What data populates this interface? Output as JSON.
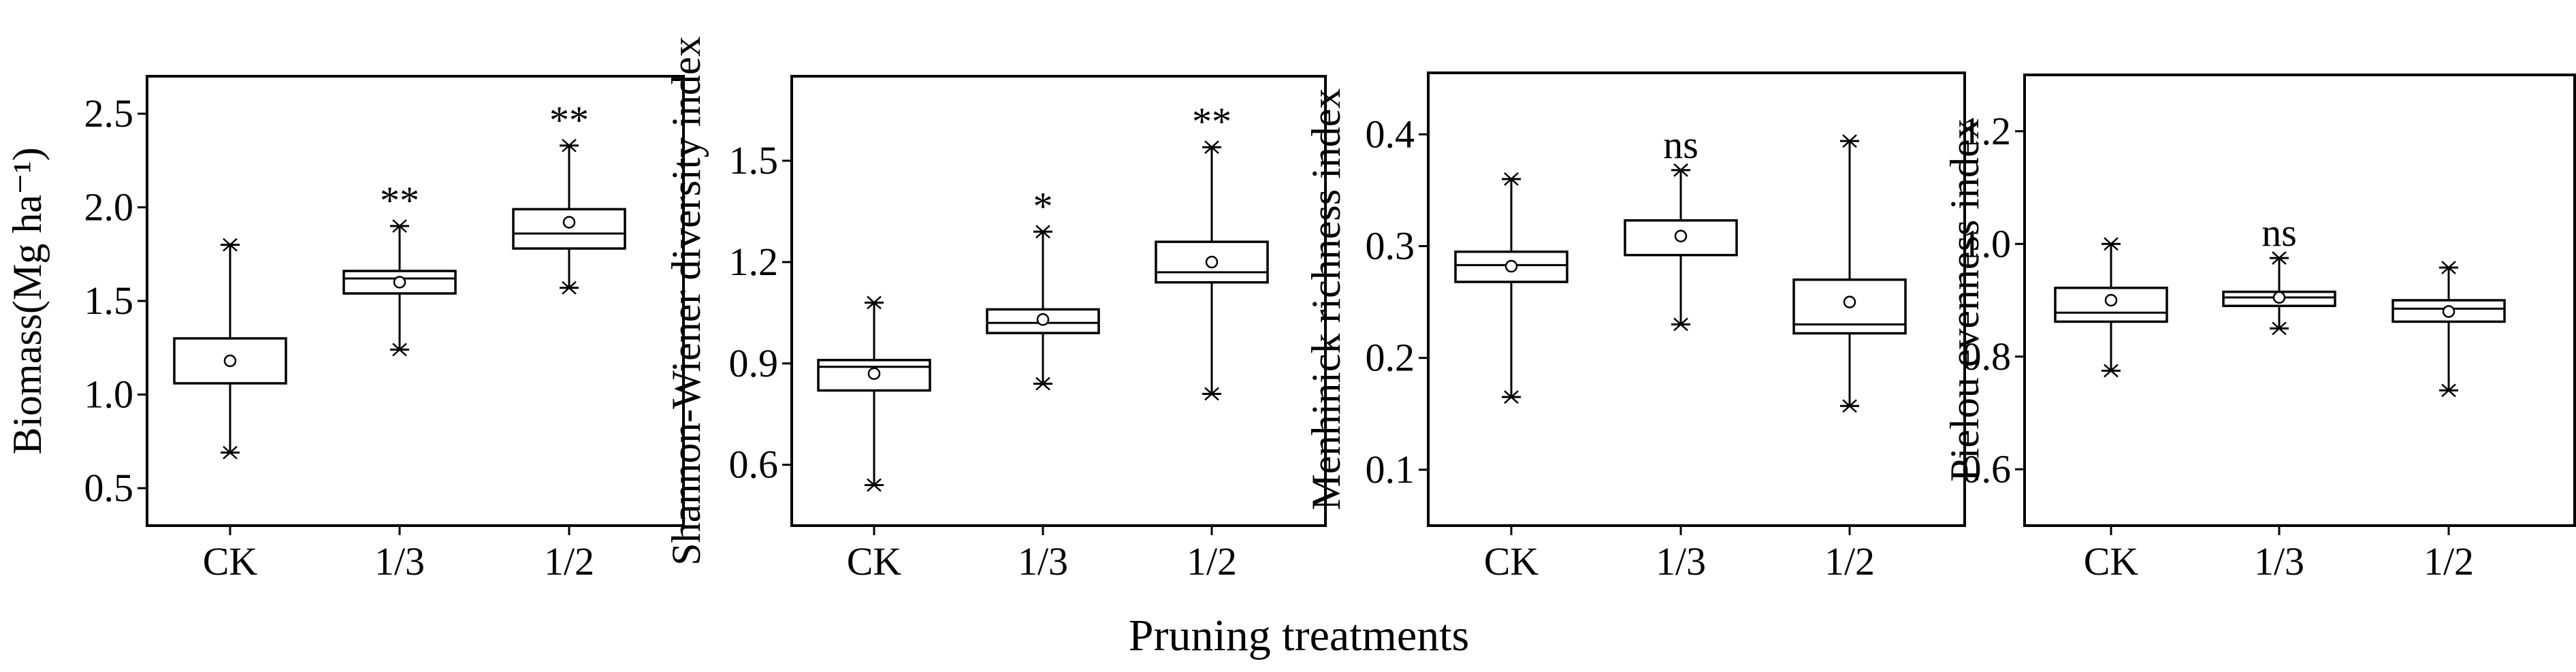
{
  "x_axis_title": "Pruning treatments",
  "chart_data": [
    {
      "type": "box",
      "ylabel": "Biomass(Mg ha⁻¹)",
      "ylim": [
        0.3,
        2.7
      ],
      "yticks": [
        0.5,
        1.0,
        1.5,
        2.0,
        2.5
      ],
      "ytick_labels": [
        "0.5",
        "1.0",
        "1.5",
        "2.0",
        "2.5"
      ],
      "categories": [
        "CK",
        "1/3",
        "1/2"
      ],
      "boxes": [
        {
          "min": 0.69,
          "q1": 1.06,
          "median": 1.06,
          "q3": 1.3,
          "max": 1.8,
          "mean": 1.18,
          "sig": ""
        },
        {
          "min": 1.24,
          "q1": 1.54,
          "median": 1.62,
          "q3": 1.66,
          "max": 1.9,
          "mean": 1.6,
          "sig": "**"
        },
        {
          "min": 1.57,
          "q1": 1.78,
          "median": 1.86,
          "q3": 1.99,
          "max": 2.33,
          "mean": 1.92,
          "sig": "**"
        }
      ]
    },
    {
      "type": "box",
      "ylabel": "Shannon-Wiener diversity index",
      "ylim": [
        0.42,
        1.75
      ],
      "yticks": [
        0.6,
        0.9,
        1.2,
        1.5
      ],
      "ytick_labels": [
        "0.6",
        "0.9",
        "1.2",
        "1.5"
      ],
      "categories": [
        "CK",
        "1/3",
        "1/2"
      ],
      "boxes": [
        {
          "min": 0.54,
          "q1": 0.82,
          "median": 0.89,
          "q3": 0.91,
          "max": 1.08,
          "mean": 0.87,
          "sig": ""
        },
        {
          "min": 0.84,
          "q1": 0.99,
          "median": 1.02,
          "q3": 1.06,
          "max": 1.29,
          "mean": 1.03,
          "sig": "*"
        },
        {
          "min": 0.81,
          "q1": 1.14,
          "median": 1.17,
          "q3": 1.26,
          "max": 1.54,
          "mean": 1.2,
          "sig": "**"
        }
      ]
    },
    {
      "type": "box",
      "ylabel": "Menhinick richness index",
      "ylim": [
        0.05,
        0.455
      ],
      "yticks": [
        0.1,
        0.2,
        0.3,
        0.4
      ],
      "ytick_labels": [
        "0.1",
        "0.2",
        "0.3",
        "0.4"
      ],
      "categories": [
        "CK",
        "1/3",
        "1/2"
      ],
      "boxes": [
        {
          "min": 0.165,
          "q1": 0.268,
          "median": 0.283,
          "q3": 0.295,
          "max": 0.36,
          "mean": 0.282,
          "sig": ""
        },
        {
          "min": 0.23,
          "q1": 0.292,
          "median": 0.323,
          "q3": 0.323,
          "max": 0.368,
          "mean": 0.309,
          "sig": "ns"
        },
        {
          "min": 0.157,
          "q1": 0.222,
          "median": 0.23,
          "q3": 0.27,
          "max": 0.394,
          "mean": 0.25,
          "sig": ""
        }
      ]
    },
    {
      "type": "box",
      "ylabel": "Pielou evenness index",
      "ylim": [
        0.5,
        1.3
      ],
      "yticks": [
        0.6,
        0.8,
        1.0,
        1.2
      ],
      "ytick_labels": [
        "0.6",
        "0.8",
        "1.0",
        "1.2"
      ],
      "categories": [
        "CK",
        "1/3",
        "1/2"
      ],
      "boxes": [
        {
          "min": 0.775,
          "q1": 0.862,
          "median": 0.878,
          "q3": 0.922,
          "max": 1.0,
          "mean": 0.9,
          "sig": ""
        },
        {
          "min": 0.85,
          "q1": 0.89,
          "median": 0.905,
          "q3": 0.915,
          "max": 0.975,
          "mean": 0.905,
          "sig": "ns"
        },
        {
          "min": 0.74,
          "q1": 0.862,
          "median": 0.885,
          "q3": 0.9,
          "max": 0.958,
          "mean": 0.88,
          "sig": ""
        }
      ]
    }
  ]
}
